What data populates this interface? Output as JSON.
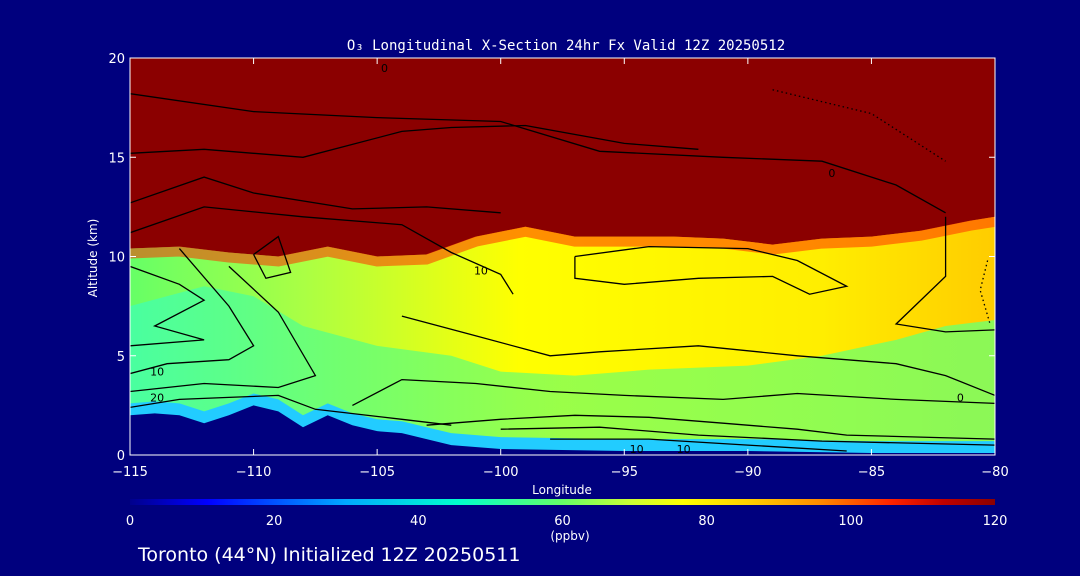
{
  "chart_data": {
    "type": "heatmap",
    "title": "O₃ Longitudinal X-Section 24hr  Fx Valid 12Z 20250512",
    "xlabel": "Longitude",
    "ylabel": "Altitude (km)",
    "xlim": [
      -115,
      -80
    ],
    "ylim": [
      0,
      20
    ],
    "x_ticks": [
      "−115",
      "−110",
      "−105",
      "−100",
      "−95",
      "−90",
      "−85",
      "−80"
    ],
    "y_ticks": [
      "0",
      "5",
      "10",
      "15",
      "20"
    ],
    "colorbar": {
      "range": [
        0,
        120
      ],
      "ticks": [
        "0",
        "20",
        "40",
        "60",
        "80",
        "100",
        "120"
      ],
      "unit": "(ppbv)",
      "colors": [
        "#00008c",
        "#0000ff",
        "#00aaff",
        "#00ffcc",
        "#66ff66",
        "#ccff33",
        "#ffff00",
        "#ffcc00",
        "#ff8800",
        "#ff2200",
        "#c00000",
        "#8b0000"
      ]
    },
    "contour_labels": [
      "0",
      "10",
      "20",
      "10",
      "10",
      "10",
      "0",
      "0"
    ],
    "tropopause_height_km": [
      {
        "lon": -115,
        "alt": 10.4
      },
      {
        "lon": -113,
        "alt": 10.5
      },
      {
        "lon": -111,
        "alt": 10.2
      },
      {
        "lon": -109,
        "alt": 10.0
      },
      {
        "lon": -107,
        "alt": 10.5
      },
      {
        "lon": -105,
        "alt": 10.0
      },
      {
        "lon": -103,
        "alt": 10.1
      },
      {
        "lon": -101,
        "alt": 11.0
      },
      {
        "lon": -99,
        "alt": 11.5
      },
      {
        "lon": -97,
        "alt": 11.0
      },
      {
        "lon": -95,
        "alt": 11.0
      },
      {
        "lon": -93,
        "alt": 11.0
      },
      {
        "lon": -91,
        "alt": 10.9
      },
      {
        "lon": -89,
        "alt": 10.6
      },
      {
        "lon": -87,
        "alt": 10.9
      },
      {
        "lon": -85,
        "alt": 11.0
      },
      {
        "lon": -83,
        "alt": 11.3
      },
      {
        "lon": -81,
        "alt": 11.8
      },
      {
        "lon": -80,
        "alt": 12.0
      }
    ],
    "terrain_height_km": [
      {
        "lon": -115,
        "alt": 2.0
      },
      {
        "lon": -114,
        "alt": 2.1
      },
      {
        "lon": -113,
        "alt": 2.0
      },
      {
        "lon": -112,
        "alt": 1.6
      },
      {
        "lon": -111,
        "alt": 2.0
      },
      {
        "lon": -110,
        "alt": 2.5
      },
      {
        "lon": -109,
        "alt": 2.2
      },
      {
        "lon": -108,
        "alt": 1.4
      },
      {
        "lon": -107,
        "alt": 2.0
      },
      {
        "lon": -106,
        "alt": 1.5
      },
      {
        "lon": -105,
        "alt": 1.2
      },
      {
        "lon": -104,
        "alt": 1.1
      },
      {
        "lon": -103,
        "alt": 0.8
      },
      {
        "lon": -102,
        "alt": 0.5
      },
      {
        "lon": -100,
        "alt": 0.3
      },
      {
        "lon": -95,
        "alt": 0.2
      },
      {
        "lon": -90,
        "alt": 0.2
      },
      {
        "lon": -85,
        "alt": 0.1
      },
      {
        "lon": -80,
        "alt": 0.1
      }
    ]
  },
  "caption": "Toronto (44°N) Initialized 12Z 20250511"
}
